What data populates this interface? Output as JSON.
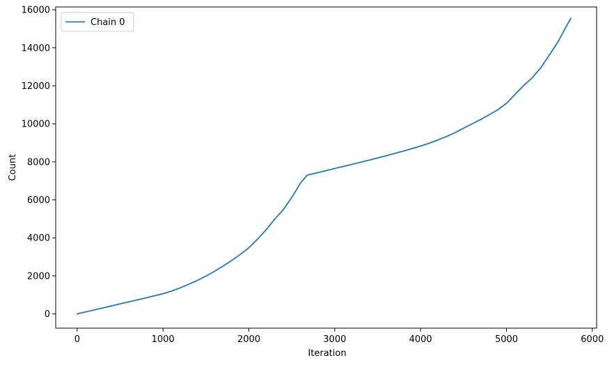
{
  "chart_data": {
    "type": "line",
    "title": "",
    "xlabel": "Iteration",
    "ylabel": "Count",
    "xlim": [
      -250,
      6050
    ],
    "ylim": [
      -750,
      16150
    ],
    "xticks": [
      0,
      1000,
      2000,
      3000,
      4000,
      5000,
      6000
    ],
    "yticks": [
      0,
      2000,
      4000,
      6000,
      8000,
      10000,
      12000,
      14000,
      16000
    ],
    "xtick_labels": [
      "0",
      "1000",
      "2000",
      "3000",
      "4000",
      "5000",
      "6000"
    ],
    "ytick_labels": [
      "0",
      "2000",
      "4000",
      "6000",
      "8000",
      "10000",
      "12000",
      "14000",
      "16000"
    ],
    "grid": false,
    "legend_position": "top-left",
    "series": [
      {
        "name": "Chain 0",
        "color": "#1f77b4",
        "x": [
          0,
          200,
          400,
          600,
          800,
          900,
          1000,
          1100,
          1200,
          1300,
          1400,
          1500,
          1600,
          1700,
          1800,
          1900,
          2000,
          2100,
          2200,
          2300,
          2400,
          2500,
          2550,
          2600,
          2650,
          2680,
          2800,
          3000,
          3200,
          3400,
          3600,
          3800,
          4000,
          4100,
          4200,
          4300,
          4400,
          4500,
          4600,
          4700,
          4800,
          4900,
          5000,
          5100,
          5200,
          5300,
          5400,
          5500,
          5600,
          5700,
          5750
        ],
        "y": [
          0,
          210,
          420,
          630,
          840,
          950,
          1060,
          1200,
          1370,
          1560,
          1760,
          1990,
          2240,
          2520,
          2810,
          3130,
          3480,
          3930,
          4420,
          4980,
          5480,
          6130,
          6500,
          6870,
          7150,
          7300,
          7430,
          7650,
          7870,
          8090,
          8320,
          8570,
          8830,
          8980,
          9150,
          9330,
          9530,
          9770,
          10000,
          10230,
          10480,
          10740,
          11080,
          11550,
          12010,
          12420,
          12950,
          13620,
          14310,
          15150,
          15550
        ]
      }
    ]
  }
}
